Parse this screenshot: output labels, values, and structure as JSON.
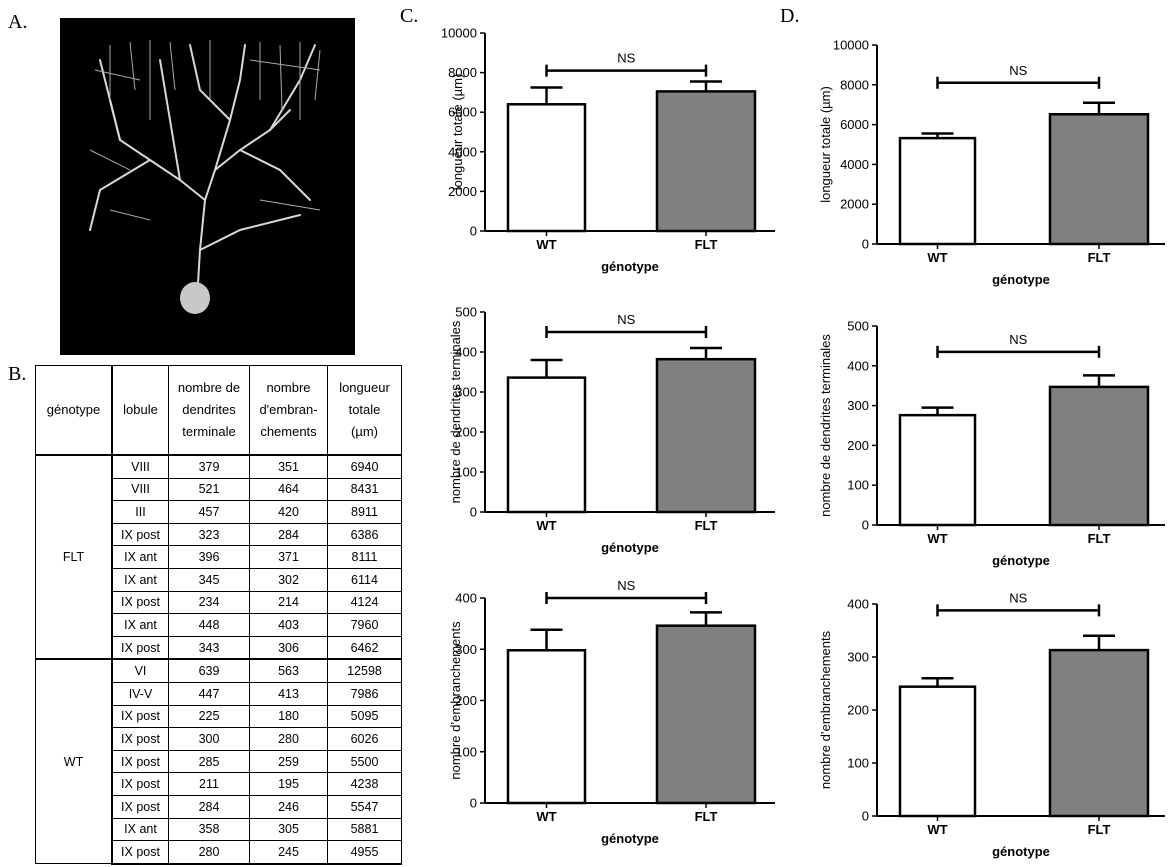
{
  "panels": {
    "a": "A.",
    "b": "B.",
    "c": "C.",
    "d": "D."
  },
  "table": {
    "header": [
      [
        "génotype"
      ],
      [
        "lobule"
      ],
      [
        "nombre de",
        "dendrites",
        "terminale"
      ],
      [
        "nombre",
        "d'embran-",
        "chements"
      ],
      [
        "longueur",
        "totale",
        "(µm)"
      ]
    ],
    "groups": [
      {
        "genotype": "FLT",
        "rows": [
          [
            "VIII",
            379,
            351,
            6940
          ],
          [
            "VIII",
            521,
            464,
            8431
          ],
          [
            "III",
            457,
            420,
            8911
          ],
          [
            "IX post",
            323,
            284,
            6386
          ],
          [
            "IX ant",
            396,
            371,
            8111
          ],
          [
            "IX ant",
            345,
            302,
            6114
          ],
          [
            "IX post",
            234,
            214,
            4124
          ],
          [
            "IX ant",
            448,
            403,
            7960
          ],
          [
            "IX post",
            343,
            306,
            6462
          ]
        ]
      },
      {
        "genotype": "WT",
        "rows": [
          [
            "VI",
            639,
            563,
            12598
          ],
          [
            "IV-V",
            447,
            413,
            7986
          ],
          [
            "IX post",
            225,
            180,
            5095
          ],
          [
            "IX post",
            300,
            280,
            6026
          ],
          [
            "IX post",
            285,
            259,
            5500
          ],
          [
            "IX post",
            211,
            195,
            4238
          ],
          [
            "IX post",
            284,
            246,
            5547
          ],
          [
            "IX ant",
            358,
            305,
            5881
          ],
          [
            "IX post",
            280,
            245,
            4955
          ]
        ]
      }
    ]
  },
  "chart_data": [
    {
      "type": "bar",
      "ylabel": "longueur totale (µm)",
      "xlabel": "génotype",
      "categories": [
        "WT",
        "FLT"
      ],
      "values": [
        6400,
        7050
      ],
      "errors": [
        850,
        500
      ],
      "colors": [
        "#ffffff",
        "#808080"
      ],
      "ylim": [
        0,
        10000
      ],
      "yticks": [
        0,
        2000,
        4000,
        6000,
        8000,
        10000
      ],
      "annotation": "NS"
    },
    {
      "type": "bar",
      "ylabel": "nombre de dendrites terminales",
      "xlabel": "génotype",
      "categories": [
        "WT",
        "FLT"
      ],
      "values": [
        336,
        382
      ],
      "errors": [
        44,
        28
      ],
      "colors": [
        "#ffffff",
        "#808080"
      ],
      "ylim": [
        0,
        500
      ],
      "yticks": [
        0,
        100,
        200,
        300,
        400,
        500
      ],
      "annotation": "NS"
    },
    {
      "type": "bar",
      "ylabel": "nombre d’embranchements",
      "xlabel": "génotype",
      "categories": [
        "WT",
        "FLT"
      ],
      "values": [
        298,
        346
      ],
      "errors": [
        40,
        26
      ],
      "colors": [
        "#ffffff",
        "#808080"
      ],
      "ylim": [
        0,
        400
      ],
      "yticks": [
        0,
        100,
        200,
        300,
        400
      ],
      "annotation": "NS"
    },
    {
      "type": "bar",
      "ylabel": "longueur totale (µm)",
      "xlabel": "génotype",
      "categories": [
        "WT",
        "FLT"
      ],
      "values": [
        5320,
        6520
      ],
      "errors": [
        230,
        580
      ],
      "colors": [
        "#ffffff",
        "#808080"
      ],
      "ylim": [
        0,
        10000
      ],
      "yticks": [
        0,
        2000,
        4000,
        6000,
        8000,
        10000
      ],
      "annotation": "NS"
    },
    {
      "type": "bar",
      "ylabel": "nombre de dendrites terminales",
      "xlabel": "génotype",
      "categories": [
        "WT",
        "FLT"
      ],
      "values": [
        276,
        347
      ],
      "errors": [
        19,
        29
      ],
      "colors": [
        "#ffffff",
        "#808080"
      ],
      "ylim": [
        0,
        500
      ],
      "yticks": [
        0,
        100,
        200,
        300,
        400,
        500
      ],
      "annotation": "NS"
    },
    {
      "type": "bar",
      "ylabel": "nombre d’embranchements",
      "xlabel": "génotype",
      "categories": [
        "WT",
        "FLT"
      ],
      "values": [
        244,
        313
      ],
      "errors": [
        16,
        27
      ],
      "colors": [
        "#ffffff",
        "#808080"
      ],
      "ylim": [
        0,
        400
      ],
      "yticks": [
        0,
        100,
        200,
        300,
        400
      ],
      "annotation": "NS"
    }
  ]
}
